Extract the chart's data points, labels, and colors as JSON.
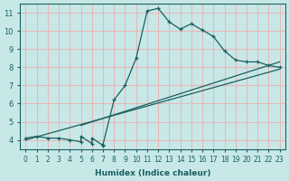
{
  "xlabel": "Humidex (Indice chaleur)",
  "ylabel": "",
  "bg_color": "#c8e8e8",
  "grid_color": "#e8b8b8",
  "line_color": "#1a6060",
  "xlim": [
    -0.5,
    23.5
  ],
  "ylim": [
    3.5,
    11.5
  ],
  "xticks": [
    0,
    1,
    2,
    3,
    4,
    5,
    6,
    7,
    8,
    9,
    10,
    11,
    12,
    13,
    14,
    15,
    16,
    17,
    18,
    19,
    20,
    21,
    22,
    23
  ],
  "yticks": [
    4,
    5,
    6,
    7,
    8,
    9,
    10,
    11
  ],
  "line1_x": [
    0,
    1,
    2,
    3,
    4,
    5,
    5,
    6,
    6,
    7,
    7,
    8,
    9,
    10,
    11,
    12,
    13,
    14,
    15,
    16,
    17,
    18,
    19,
    20,
    21,
    22,
    23
  ],
  "line1_y": [
    4.1,
    4.2,
    4.1,
    4.1,
    4.0,
    3.9,
    4.2,
    3.8,
    4.1,
    3.7,
    3.75,
    6.2,
    7.0,
    8.5,
    11.1,
    11.25,
    10.5,
    10.1,
    10.4,
    10.05,
    9.7,
    8.9,
    8.4,
    8.3,
    8.3,
    8.1,
    8.0
  ],
  "line2_x": [
    0,
    23
  ],
  "line2_y": [
    4.0,
    7.9
  ],
  "line3_x": [
    5,
    23
  ],
  "line3_y": [
    4.8,
    8.3
  ]
}
